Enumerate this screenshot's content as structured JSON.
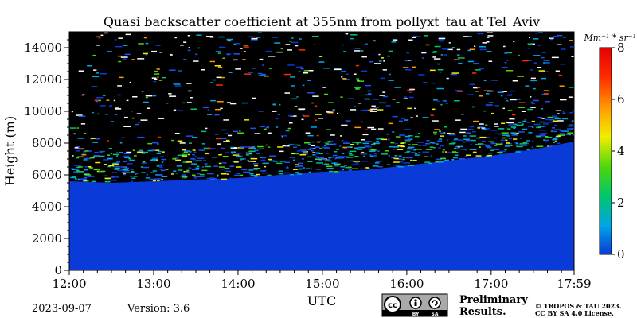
{
  "chart_data": {
    "type": "heatmap",
    "title": "Quasi backscatter coefficient at 355nm from pollyxt_tau at Tel_Aviv",
    "xlabel": "UTC",
    "ylabel": "Height (m)",
    "x_ticks": [
      "12:00",
      "13:00",
      "14:00",
      "15:00",
      "16:00",
      "17:00",
      "17:59"
    ],
    "x_tick_hours": [
      12.0,
      13.0,
      14.0,
      15.0,
      16.0,
      17.0,
      17.983
    ],
    "xlim_hours": [
      12.0,
      17.983
    ],
    "y_ticks": [
      0,
      2000,
      4000,
      6000,
      8000,
      10000,
      12000,
      14000
    ],
    "ylim": [
      0,
      15000
    ],
    "colorbar": {
      "unit_label": "Mm⁻¹ * sr⁻¹",
      "ticks": [
        0,
        2,
        4,
        6,
        8
      ],
      "range": [
        0,
        8
      ],
      "colormap": [
        "#0a3ad8",
        "#00a6e6",
        "#00c66e",
        "#4ad60c",
        "#f2ee00",
        "#ff9a00",
        "#ff2a00",
        "#e60000"
      ]
    },
    "signal_top_height": [
      {
        "hour": 12.0,
        "height": 5600
      },
      {
        "hour": 12.5,
        "height": 5500
      },
      {
        "hour": 13.0,
        "height": 5600
      },
      {
        "hour": 13.5,
        "height": 5700
      },
      {
        "hour": 14.0,
        "height": 5800
      },
      {
        "hour": 14.5,
        "height": 6000
      },
      {
        "hour": 15.0,
        "height": 6200
      },
      {
        "hour": 15.5,
        "height": 6300
      },
      {
        "hour": 16.0,
        "height": 6600
      },
      {
        "hour": 16.5,
        "height": 6900
      },
      {
        "hour": 17.0,
        "height": 7200
      },
      {
        "hour": 17.5,
        "height": 7600
      },
      {
        "hour": 17.983,
        "height": 8100
      }
    ],
    "background_color": "#0a3ad8",
    "no_signal_color": "#000000"
  },
  "footer": {
    "date": "2023-09-07",
    "version": "Version: 3.6",
    "license_badge": [
      "cc",
      "BY",
      "SA"
    ],
    "preliminary_line1": "Preliminary",
    "preliminary_line2": "Results.",
    "copyright_line1": "© TROPOS & TAU 2023.",
    "copyright_line2": "CC BY SA 4.0 License.",
    "preliminary_color": "#ff3333"
  }
}
